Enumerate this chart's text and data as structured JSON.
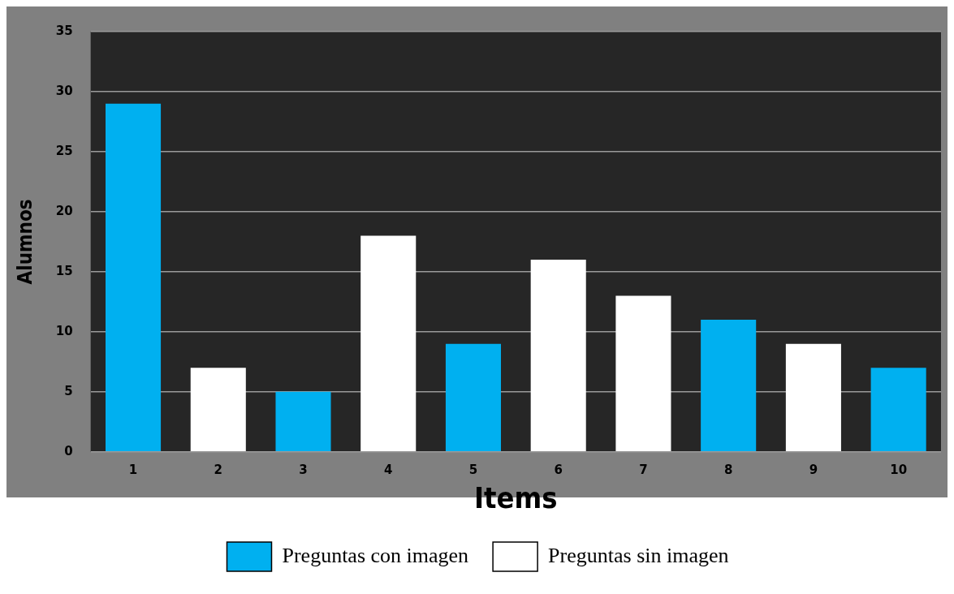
{
  "chart_data": {
    "type": "bar",
    "xlabel": "Items",
    "ylabel": "Alumnos",
    "categories": [
      "1",
      "2",
      "3",
      "4",
      "5",
      "6",
      "7",
      "8",
      "9",
      "10"
    ],
    "series": [
      {
        "name": "Preguntas con imagen",
        "color": "#00b0f0",
        "values": [
          29,
          null,
          5,
          null,
          9,
          null,
          null,
          11,
          null,
          7
        ]
      },
      {
        "name": "Preguntas sin imagen",
        "color": "#ffffff",
        "values": [
          null,
          7,
          null,
          18,
          null,
          16,
          13,
          null,
          9,
          null
        ]
      }
    ],
    "ylim": [
      0,
      35
    ],
    "yticks": [
      0,
      5,
      10,
      15,
      20,
      25,
      30,
      35
    ],
    "grid": "y",
    "legend": "bottom"
  }
}
